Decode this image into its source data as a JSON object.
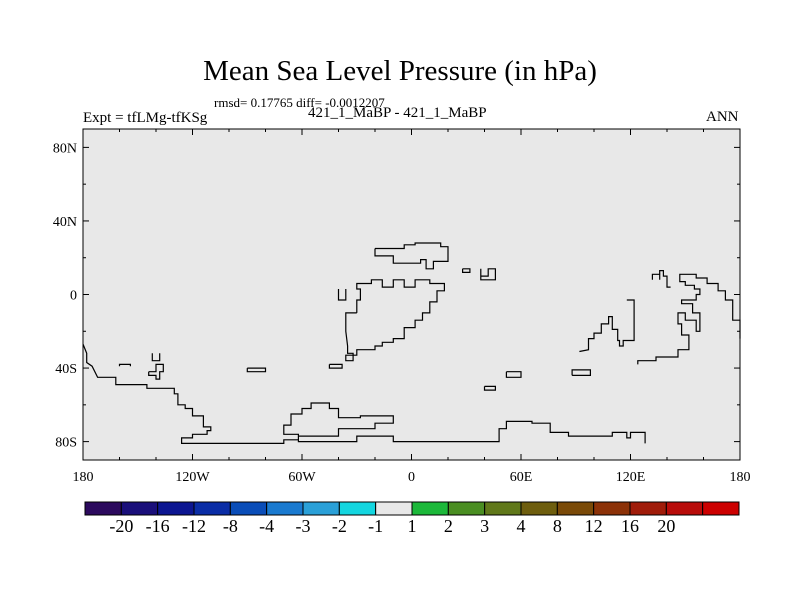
{
  "header": {
    "title": "Mean Sea Level Pressure (in hPa)",
    "stats": "rmsd= 0.17765 diff= -0.0012207",
    "left_label": "Expt = tfLMg-tfKSg",
    "center_label": "421_1_MaBP - 421_1_MaBP",
    "right_label": "ANN"
  },
  "chart_data": {
    "type": "heatmap",
    "projection": "cylindrical equidistant",
    "background_fill": "#e8e8e8",
    "xlim": [
      -180,
      180
    ],
    "ylim": [
      -90,
      90
    ],
    "x_ticks": [
      {
        "value": -180,
        "label": "180"
      },
      {
        "value": -120,
        "label": "120W"
      },
      {
        "value": -60,
        "label": "60W"
      },
      {
        "value": 0,
        "label": "0"
      },
      {
        "value": 60,
        "label": "60E"
      },
      {
        "value": 120,
        "label": "120E"
      },
      {
        "value": 180,
        "label": "180"
      }
    ],
    "y_ticks": [
      {
        "value": 80,
        "label": "80N"
      },
      {
        "value": 40,
        "label": "40N"
      },
      {
        "value": 0,
        "label": "0"
      },
      {
        "value": -40,
        "label": "40S"
      },
      {
        "value": -80,
        "label": "80S"
      }
    ],
    "coastlines": [
      [
        [
          -160,
          -39
        ],
        [
          -160,
          -38
        ],
        [
          -154,
          -38
        ],
        [
          -154,
          -39
        ]
      ],
      [
        [
          -138,
          -32
        ],
        [
          -138,
          -36
        ],
        [
          -142,
          -36
        ],
        [
          -142,
          -32
        ]
      ],
      [
        [
          -180,
          -27
        ],
        [
          -178,
          -32
        ],
        [
          -178,
          -37
        ],
        [
          -175,
          -39
        ],
        [
          -172,
          -45
        ],
        [
          -162,
          -45
        ],
        [
          -162,
          -49
        ],
        [
          -145,
          -49
        ],
        [
          -145,
          -51
        ],
        [
          -130,
          -51
        ],
        [
          -130,
          -54
        ],
        [
          -128,
          -54
        ],
        [
          -128,
          -60
        ],
        [
          -124,
          -60
        ],
        [
          -124,
          -62
        ],
        [
          -120,
          -62
        ],
        [
          -120,
          -66
        ],
        [
          -114,
          -66
        ],
        [
          -114,
          -72
        ],
        [
          -110,
          -72
        ],
        [
          -110,
          -74
        ],
        [
          -112,
          -74
        ],
        [
          -112,
          -76
        ],
        [
          -120,
          -76
        ],
        [
          -120,
          -78
        ],
        [
          -126,
          -78
        ],
        [
          -126,
          -81
        ],
        [
          -70,
          -81
        ],
        [
          -70,
          -79
        ],
        [
          -62,
          -79
        ],
        [
          -62,
          -76
        ],
        [
          -70,
          -76
        ],
        [
          -70,
          -71
        ],
        [
          -66,
          -71
        ],
        [
          -66,
          -65
        ],
        [
          -60,
          -65
        ],
        [
          -60,
          -62
        ],
        [
          -55,
          -62
        ],
        [
          -55,
          -59
        ],
        [
          -45,
          -59
        ],
        [
          -45,
          -62
        ],
        [
          -40,
          -62
        ],
        [
          -40,
          -67
        ],
        [
          -28,
          -67
        ],
        [
          -28,
          -66
        ],
        [
          -10,
          -66
        ],
        [
          -10,
          -70
        ],
        [
          -20,
          -70
        ],
        [
          -20,
          -73
        ],
        [
          -40,
          -73
        ],
        [
          -40,
          -77
        ],
        [
          -62,
          -77
        ],
        [
          -62,
          -80
        ],
        [
          -30,
          -80
        ],
        [
          -30,
          -77
        ],
        [
          -10,
          -77
        ],
        [
          -10,
          -80
        ],
        [
          48,
          -80
        ],
        [
          48,
          -73
        ],
        [
          52,
          -73
        ],
        [
          52,
          -69
        ],
        [
          66,
          -69
        ],
        [
          66,
          -70
        ],
        [
          76,
          -70
        ],
        [
          76,
          -75
        ],
        [
          86,
          -75
        ],
        [
          86,
          -77
        ],
        [
          110,
          -77
        ],
        [
          110,
          -75
        ],
        [
          118,
          -75
        ],
        [
          118,
          -78
        ],
        [
          120,
          -78
        ],
        [
          120,
          -75
        ],
        [
          128,
          -75
        ],
        [
          128,
          -81
        ]
      ],
      [
        [
          -144,
          -42
        ],
        [
          -144,
          -44
        ],
        [
          -140,
          -44
        ],
        [
          -140,
          -46
        ],
        [
          -138,
          -46
        ],
        [
          -138,
          -42
        ],
        [
          -136,
          -42
        ],
        [
          -136,
          -38
        ],
        [
          -140,
          -38
        ],
        [
          -140,
          -42
        ],
        [
          -144,
          -42
        ]
      ],
      [
        [
          -90,
          -40
        ],
        [
          -90,
          -42
        ],
        [
          -80,
          -42
        ],
        [
          -80,
          -40
        ],
        [
          -90,
          -40
        ]
      ],
      [
        [
          -45,
          -38
        ],
        [
          -45,
          -40
        ],
        [
          -38,
          -40
        ],
        [
          -38,
          -38
        ],
        [
          -45,
          -38
        ]
      ],
      [
        [
          -40,
          3
        ],
        [
          -40,
          -3
        ],
        [
          -36,
          -3
        ],
        [
          -36,
          3
        ]
      ],
      [
        [
          -30,
          -10
        ],
        [
          -36,
          -10
        ],
        [
          -36,
          -20
        ],
        [
          -35,
          -28
        ],
        [
          -35,
          -32
        ],
        [
          -32,
          -32
        ],
        [
          -32,
          -36
        ],
        [
          -36,
          -36
        ],
        [
          -36,
          -33
        ],
        [
          -30,
          -33
        ],
        [
          -30,
          -30
        ],
        [
          -20,
          -30
        ],
        [
          -20,
          -28
        ],
        [
          -16,
          -28
        ],
        [
          -16,
          -26
        ],
        [
          -10,
          -26
        ],
        [
          -10,
          -24
        ],
        [
          -4,
          -24
        ],
        [
          -4,
          -18
        ],
        [
          2,
          -18
        ],
        [
          2,
          -14
        ],
        [
          6,
          -14
        ],
        [
          6,
          -10
        ],
        [
          10,
          -10
        ],
        [
          10,
          -4
        ],
        [
          14,
          -4
        ],
        [
          14,
          2
        ],
        [
          18,
          2
        ],
        [
          18,
          6
        ],
        [
          10,
          6
        ],
        [
          10,
          8
        ],
        [
          2,
          8
        ],
        [
          2,
          4
        ],
        [
          -4,
          4
        ],
        [
          -4,
          8
        ],
        [
          -10,
          8
        ],
        [
          -10,
          4
        ],
        [
          -16,
          4
        ],
        [
          -16,
          8
        ],
        [
          -22,
          8
        ],
        [
          -22,
          6
        ],
        [
          -30,
          6
        ],
        [
          -30,
          3
        ],
        [
          -28,
          3
        ],
        [
          -28,
          -3
        ],
        [
          -30,
          -3
        ],
        [
          -30,
          -10
        ]
      ],
      [
        [
          -20,
          25
        ],
        [
          -20,
          21
        ],
        [
          -10,
          21
        ],
        [
          -10,
          17
        ],
        [
          5,
          17
        ],
        [
          5,
          19
        ],
        [
          8,
          19
        ],
        [
          8,
          14
        ],
        [
          12,
          14
        ],
        [
          12,
          18
        ],
        [
          20,
          18
        ],
        [
          20,
          26
        ],
        [
          16,
          26
        ],
        [
          16,
          28
        ],
        [
          2,
          28
        ],
        [
          2,
          27
        ],
        [
          -4,
          27
        ],
        [
          -4,
          25
        ],
        [
          -20,
          25
        ]
      ],
      [
        [
          28,
          14
        ],
        [
          28,
          12
        ],
        [
          32,
          12
        ],
        [
          32,
          14
        ],
        [
          28,
          14
        ]
      ],
      [
        [
          38,
          14
        ],
        [
          38,
          8
        ],
        [
          46,
          8
        ],
        [
          46,
          14
        ],
        [
          42,
          14
        ],
        [
          42,
          10
        ],
        [
          38,
          10
        ]
      ],
      [
        [
          52,
          -42
        ],
        [
          52,
          -45
        ],
        [
          60,
          -45
        ],
        [
          60,
          -42
        ],
        [
          52,
          -42
        ]
      ],
      [
        [
          40,
          -50
        ],
        [
          40,
          -52
        ],
        [
          46,
          -52
        ],
        [
          46,
          -50
        ],
        [
          40,
          -50
        ]
      ],
      [
        [
          88,
          -44
        ],
        [
          88,
          -41
        ],
        [
          98,
          -41
        ],
        [
          98,
          -44
        ],
        [
          88,
          -44
        ]
      ],
      [
        [
          92,
          -31
        ],
        [
          97,
          -30
        ],
        [
          97,
          -24
        ],
        [
          100,
          -24
        ],
        [
          100,
          -21
        ],
        [
          104,
          -21
        ],
        [
          104,
          -16
        ],
        [
          108,
          -16
        ],
        [
          108,
          -12
        ],
        [
          110,
          -12
        ],
        [
          110,
          -19
        ],
        [
          113,
          -19
        ],
        [
          113,
          -25
        ],
        [
          114,
          -25
        ],
        [
          114,
          -28
        ],
        [
          116,
          -28
        ],
        [
          116,
          -25
        ],
        [
          122,
          -25
        ],
        [
          122,
          -3
        ],
        [
          118,
          -3
        ]
      ],
      [
        [
          124,
          -38
        ],
        [
          124,
          -36
        ],
        [
          134,
          -36
        ],
        [
          134,
          -34
        ],
        [
          146,
          -34
        ],
        [
          146,
          -30
        ],
        [
          152,
          -30
        ],
        [
          152,
          -22
        ],
        [
          148,
          -22
        ],
        [
          148,
          -16
        ],
        [
          146,
          -16
        ],
        [
          146,
          -10
        ],
        [
          150,
          -10
        ],
        [
          150,
          -14
        ],
        [
          156,
          -14
        ],
        [
          156,
          -20
        ],
        [
          158,
          -20
        ],
        [
          158,
          -10
        ],
        [
          154,
          -10
        ],
        [
          154,
          -5
        ],
        [
          148,
          -5
        ],
        [
          148,
          -3
        ],
        [
          156,
          -3
        ],
        [
          156,
          0
        ],
        [
          158,
          0
        ],
        [
          158,
          3
        ],
        [
          155,
          3
        ],
        [
          155,
          5
        ],
        [
          150,
          5
        ],
        [
          150,
          7
        ],
        [
          147,
          7
        ],
        [
          147,
          11
        ],
        [
          156,
          11
        ],
        [
          156,
          9
        ],
        [
          162,
          9
        ],
        [
          162,
          6
        ],
        [
          168,
          6
        ],
        [
          168,
          2
        ],
        [
          172,
          2
        ],
        [
          172,
          -3
        ],
        [
          176,
          -3
        ],
        [
          176,
          -14
        ],
        [
          180,
          -14
        ],
        [
          180,
          -24
        ]
      ],
      [
        [
          132,
          8
        ],
        [
          132,
          11
        ],
        [
          136,
          11
        ],
        [
          136,
          8
        ]
      ],
      [
        [
          136,
          11
        ],
        [
          136,
          13
        ],
        [
          138,
          13
        ],
        [
          138,
          10
        ],
        [
          140,
          10
        ],
        [
          140,
          4
        ],
        [
          142,
          4
        ]
      ]
    ],
    "colorbar": {
      "colors": [
        "#2c0a5e",
        "#1a0f7a",
        "#0c1691",
        "#0a2da6",
        "#0a4db8",
        "#1a7ad0",
        "#2aa0d8",
        "#14d6e0",
        "#e8e8e8",
        "#1cb83a",
        "#4a8e22",
        "#60781a",
        "#6e5e0e",
        "#7a4a08",
        "#8c3208",
        "#a01c0a",
        "#b80c0a",
        "#cc0000"
      ],
      "labels": [
        "-20",
        "-16",
        "-12",
        "-8",
        "-4",
        "-3",
        "-2",
        "-1",
        "1",
        "2",
        "3",
        "4",
        "8",
        "12",
        "16",
        "20"
      ]
    }
  }
}
